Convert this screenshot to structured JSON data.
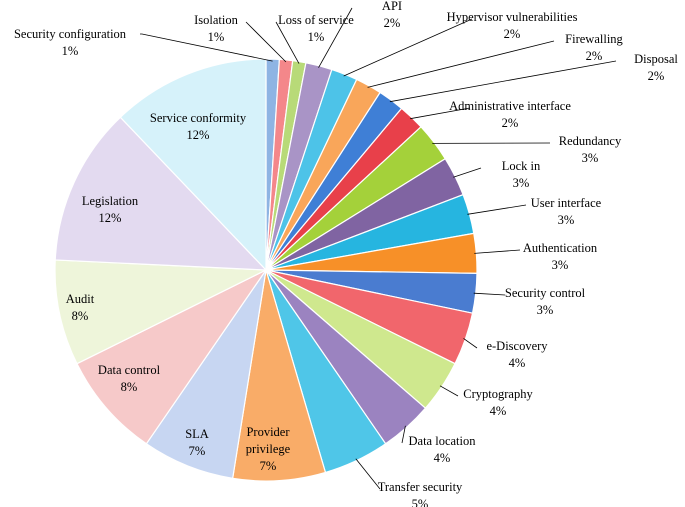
{
  "chart_data": {
    "type": "pie",
    "title": "",
    "start_angle_deg": 0,
    "direction": "clockwise",
    "slices": [
      {
        "label": "Security configuration",
        "value": 1,
        "pct_label": "1%",
        "color": "#8EB4E3"
      },
      {
        "label": "Isolation",
        "value": 1,
        "pct_label": "1%",
        "color": "#F4878A"
      },
      {
        "label": "Loss of service",
        "value": 1,
        "pct_label": "1%",
        "color": "#B8DA78"
      },
      {
        "label": "API",
        "value": 2,
        "pct_label": "2%",
        "color": "#A994C6"
      },
      {
        "label": "Hypervisor vulnerabilities",
        "value": 2,
        "pct_label": "2%",
        "color": "#4DC3E8"
      },
      {
        "label": "Firewalling",
        "value": 2,
        "pct_label": "2%",
        "color": "#F9A65A"
      },
      {
        "label": "Disposal",
        "value": 2,
        "pct_label": "2%",
        "color": "#3F7FD6"
      },
      {
        "label": "Administrative interface",
        "value": 2,
        "pct_label": "2%",
        "color": "#E8404A"
      },
      {
        "label": "Redundancy",
        "value": 3,
        "pct_label": "3%",
        "color": "#A4D13A"
      },
      {
        "label": "Lock in",
        "value": 3,
        "pct_label": "3%",
        "color": "#8064A2"
      },
      {
        "label": "User interface",
        "value": 3,
        "pct_label": "3%",
        "color": "#26B5E0"
      },
      {
        "label": "Authentication",
        "value": 3,
        "pct_label": "3%",
        "color": "#F79028"
      },
      {
        "label": "Security control",
        "value": 3,
        "pct_label": "3%",
        "color": "#4A7CD0"
      },
      {
        "label": "e-Discovery",
        "value": 4,
        "pct_label": "4%",
        "color": "#F1666C"
      },
      {
        "label": "Cryptography",
        "value": 4,
        "pct_label": "4%",
        "color": "#CFE88E"
      },
      {
        "label": "Data location",
        "value": 4,
        "pct_label": "4%",
        "color": "#9B83C0"
      },
      {
        "label": "Transfer security",
        "value": 5,
        "pct_label": "5%",
        "color": "#4FC6E8"
      },
      {
        "label": "Provider privilege",
        "value": 7,
        "pct_label": "7%",
        "color": "#F9AC68"
      },
      {
        "label": "SLA",
        "value": 7,
        "pct_label": "7%",
        "color": "#C7D6F2"
      },
      {
        "label": "Data control",
        "value": 8,
        "pct_label": "8%",
        "color": "#F6C9C9"
      },
      {
        "label": "Audit",
        "value": 8,
        "pct_label": "8%",
        "color": "#EEF5DA"
      },
      {
        "label": "Legislation",
        "value": 12,
        "pct_label": "12%",
        "color": "#E3DAF0"
      },
      {
        "label": "Service conformity",
        "value": 12,
        "pct_label": "12%",
        "color": "#D6F2FA"
      }
    ]
  }
}
